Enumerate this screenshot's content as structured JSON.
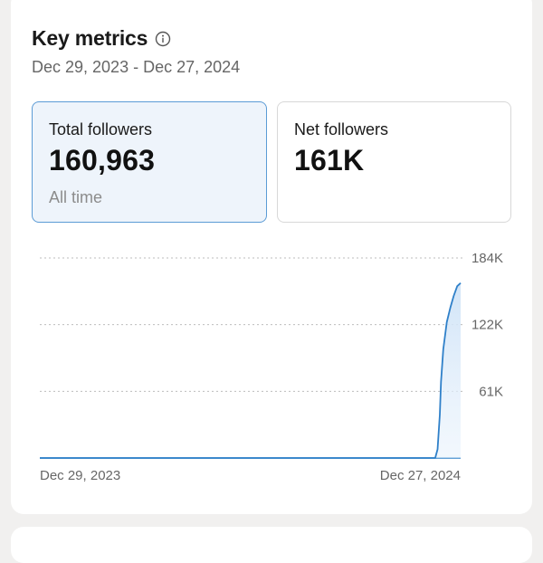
{
  "header": {
    "title": "Key metrics",
    "date_range": "Dec 29, 2023 - Dec 27, 2024"
  },
  "metrics": [
    {
      "label": "Total followers",
      "value": "160,963",
      "sub": "All time",
      "selected": true
    },
    {
      "label": "Net followers",
      "value": "161K",
      "sub": "",
      "selected": false
    }
  ],
  "colors": {
    "accent": "#2f80c9",
    "fill_top": "#cfe3f7",
    "selected_border": "#5b9bd5",
    "selected_bg": "#eef4fb"
  },
  "chart_data": {
    "type": "area",
    "x_tick_labels": [
      "Dec 29, 2023",
      "Dec 27, 2024"
    ],
    "y_tick_labels": [
      "184K",
      "122K",
      "61K"
    ],
    "ylim": [
      0,
      184000
    ],
    "grid": true,
    "grid_style": "dotted",
    "y_axis_position": "right",
    "series": [
      {
        "x": [
          "2023-12-29",
          "2024-11-27",
          "2024-12-05",
          "2024-12-07",
          "2024-12-09",
          "2024-12-10",
          "2024-12-12",
          "2024-12-15",
          "2024-12-18",
          "2024-12-21",
          "2024-12-24",
          "2024-12-27"
        ],
        "values": [
          0,
          0,
          0,
          8000,
          40000,
          70000,
          100000,
          125000,
          138000,
          149000,
          158000,
          160963
        ]
      }
    ]
  }
}
